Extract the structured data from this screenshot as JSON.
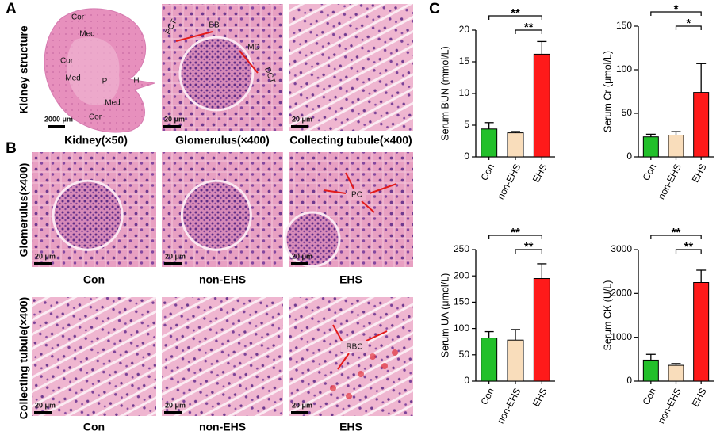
{
  "panel_labels": [
    "A",
    "B",
    "C"
  ],
  "panel_a": {
    "row_label": "Kidney structure",
    "images": [
      {
        "caption": "Kidney(×50)",
        "scale_bar": "2000 μm",
        "annotations": [
          "Cor",
          "Med",
          "Cor",
          "P",
          "H",
          "Med",
          "Med",
          "Cor"
        ]
      },
      {
        "caption": "Glomerulus(×400)",
        "scale_bar": "20 μm",
        "annotations": [
          "PCT",
          "BB",
          "MD",
          "DCT"
        ]
      },
      {
        "caption": "Collecting tubule(×400)",
        "scale_bar": "20 μm"
      }
    ]
  },
  "panel_b": {
    "rows": [
      {
        "label": "Glomerulus(×400)",
        "captions": [
          "Con",
          "non-EHS",
          "EHS"
        ],
        "scale_bar": "20 μm",
        "annotation": "PC"
      },
      {
        "label": "Collecting tubule(×400)",
        "captions": [
          "Con",
          "non-EHS",
          "EHS"
        ],
        "scale_bar": "20 μm",
        "annotation": "RBC"
      }
    ]
  },
  "chart_data": [
    {
      "type": "bar",
      "y_label": "Serum BUN (mmol/L)",
      "categories": [
        "Con",
        "non-EHS",
        "EHS"
      ],
      "values": [
        4.4,
        3.8,
        16.2
      ],
      "errors": [
        1.0,
        0.2,
        2.0
      ],
      "colors": [
        "#22c02a",
        "#f9ddbb",
        "#ff1a1a"
      ],
      "ylim": [
        0,
        20
      ],
      "yticks": [
        0,
        5,
        10,
        15,
        20
      ],
      "brackets": [
        {
          "label": "**",
          "between": [
            0,
            2
          ]
        },
        {
          "label": "**",
          "between": [
            1,
            2
          ]
        }
      ]
    },
    {
      "type": "bar",
      "y_label": "Serum Cr (μmol/L)",
      "categories": [
        "Con",
        "non-EHS",
        "EHS"
      ],
      "values": [
        23,
        25,
        74
      ],
      "errors": [
        3,
        4,
        33
      ],
      "colors": [
        "#22c02a",
        "#f9ddbb",
        "#ff1a1a"
      ],
      "ylim": [
        0,
        150
      ],
      "yticks": [
        0,
        50,
        100,
        150
      ],
      "brackets": [
        {
          "label": "*",
          "between": [
            0,
            2
          ]
        },
        {
          "label": "*",
          "between": [
            1,
            2
          ]
        }
      ]
    },
    {
      "type": "bar",
      "y_label": "Serum UA (μmol/L)",
      "categories": [
        "Con",
        "non-EHS",
        "EHS"
      ],
      "values": [
        82,
        78,
        195
      ],
      "errors": [
        12,
        20,
        28
      ],
      "colors": [
        "#22c02a",
        "#f9ddbb",
        "#ff1a1a"
      ],
      "ylim": [
        0,
        250
      ],
      "yticks": [
        0,
        50,
        100,
        150,
        200,
        250
      ],
      "brackets": [
        {
          "label": "**",
          "between": [
            0,
            2
          ]
        },
        {
          "label": "**",
          "between": [
            1,
            2
          ]
        }
      ]
    },
    {
      "type": "bar",
      "y_label": "Serum CK (U/L)",
      "categories": [
        "Con",
        "non-EHS",
        "EHS"
      ],
      "values": [
        480,
        360,
        2250
      ],
      "errors": [
        130,
        40,
        280
      ],
      "colors": [
        "#22c02a",
        "#f9ddbb",
        "#ff1a1a"
      ],
      "ylim": [
        0,
        3000
      ],
      "yticks": [
        0,
        1000,
        2000,
        3000
      ],
      "brackets": [
        {
          "label": "**",
          "between": [
            0,
            2
          ]
        },
        {
          "label": "**",
          "between": [
            1,
            2
          ]
        }
      ]
    }
  ]
}
